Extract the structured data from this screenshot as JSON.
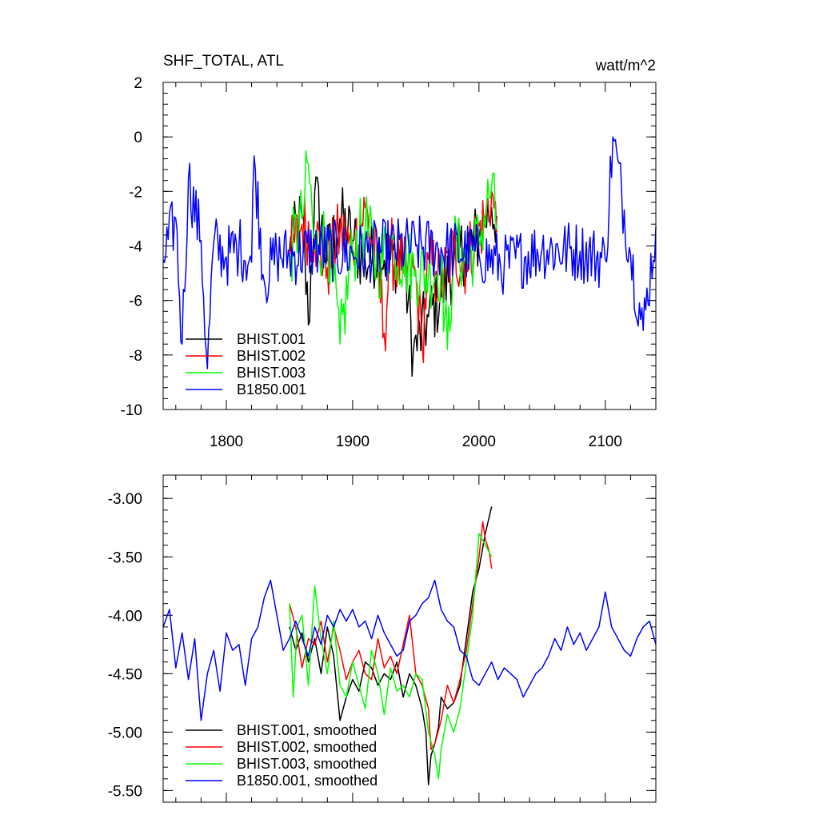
{
  "chart_data": [
    {
      "type": "line",
      "title": "SHF_TOTAL, ATL",
      "units": "watt/m^2",
      "xlim": [
        1750,
        2140
      ],
      "ylim": [
        -10,
        2
      ],
      "xticks": [
        1800,
        1900,
        2000,
        2100
      ],
      "yticks": [
        2,
        0,
        -2,
        -4,
        -6,
        -8,
        -10
      ],
      "ytick_labels": [
        "2",
        "0",
        "-2",
        "-4",
        "-6",
        "-8",
        "-10"
      ],
      "grid": false,
      "legend_position": "bottom-left",
      "series": [
        {
          "name": "BHIST.001",
          "color": "#000000",
          "x_start": 1850,
          "x_end": 2014,
          "noisy": true,
          "mean": -4.4,
          "amp": 1.3,
          "x": [
            1850,
            1860,
            1865,
            1870,
            1880,
            1890,
            1900,
            1910,
            1920,
            1930,
            1940,
            1948,
            1960,
            1970,
            1980,
            1990,
            2000,
            2005,
            2010,
            2014
          ],
          "y": [
            -4.2,
            -3.0,
            -6.9,
            -2.0,
            -4.5,
            -3.0,
            -3.8,
            -4.6,
            -4.1,
            -4.5,
            -4.3,
            -7.9,
            -6.6,
            -5.8,
            -4.6,
            -4.0,
            -3.7,
            -2.9,
            -2.6,
            -2.9
          ]
        },
        {
          "name": "BHIST.002",
          "color": "#ff0000",
          "x_start": 1850,
          "x_end": 2014,
          "noisy": true,
          "mean": -4.4,
          "amp": 1.3,
          "x": [
            1850,
            1860,
            1870,
            1880,
            1890,
            1900,
            1910,
            1920,
            1925,
            1930,
            1940,
            1950,
            1955,
            1960,
            1970,
            1980,
            1990,
            2000,
            2005,
            2010,
            2014
          ],
          "y": [
            -4.4,
            -3.2,
            -3.6,
            -4.8,
            -3.5,
            -4.2,
            -2.6,
            -4.9,
            -7.2,
            -4.2,
            -5.0,
            -5.1,
            -7.6,
            -4.5,
            -5.4,
            -4.2,
            -4.6,
            -3.3,
            -3.1,
            -2.0,
            -3.5
          ]
        },
        {
          "name": "BHIST.003",
          "color": "#00ff00",
          "x_start": 1850,
          "x_end": 2014,
          "noisy": true,
          "mean": -4.4,
          "amp": 1.3,
          "x": [
            1850,
            1860,
            1865,
            1870,
            1880,
            1890,
            1900,
            1910,
            1920,
            1930,
            1940,
            1950,
            1960,
            1970,
            1975,
            1980,
            1990,
            2000,
            2010,
            2014
          ],
          "y": [
            -4.3,
            -3.0,
            -1.0,
            -4.2,
            -3.5,
            -7.6,
            -4.2,
            -3.2,
            -4.8,
            -3.8,
            -4.5,
            -4.9,
            -5.0,
            -4.8,
            -7.8,
            -4.0,
            -4.6,
            -3.8,
            -1.8,
            -3.4
          ]
        },
        {
          "name": "B1850.001",
          "color": "#0000ff",
          "x_start": 1750,
          "x_end": 2140,
          "noisy": true,
          "mean": -4.35,
          "amp": 1.1,
          "x": [
            1750,
            1760,
            1765,
            1770,
            1780,
            1785,
            1790,
            1800,
            1810,
            1820,
            1822,
            1830,
            1840,
            1850,
            1870,
            1900,
            1950,
            2000,
            2020,
            2050,
            2080,
            2100,
            2106,
            2120,
            2130,
            2140
          ],
          "y": [
            -4.5,
            -3.0,
            -7.6,
            -1.5,
            -3.8,
            -8.5,
            -3.9,
            -4.4,
            -4.0,
            -4.6,
            -0.7,
            -5.3,
            -4.3,
            -4.4,
            -4.1,
            -4.3,
            -4.0,
            -4.3,
            -4.7,
            -4.1,
            -4.2,
            -4.5,
            0.0,
            -4.3,
            -7.1,
            -3.3
          ]
        }
      ]
    },
    {
      "type": "line",
      "xlim": [
        1750,
        2140
      ],
      "ylim": [
        -5.6,
        -2.8
      ],
      "xticks": [
        1800,
        1900,
        2000,
        2100
      ],
      "yticks": [
        -3.0,
        -3.5,
        -4.0,
        -4.5,
        -5.0,
        -5.5
      ],
      "ytick_labels": [
        "-3.00",
        "-3.50",
        "-4.00",
        "-4.50",
        "-5.00",
        "-5.50"
      ],
      "grid": false,
      "legend_position": "bottom-left",
      "series": [
        {
          "name": "BHIST.001, smoothed",
          "color": "#000000",
          "x": [
            1850,
            1855,
            1860,
            1865,
            1870,
            1875,
            1880,
            1885,
            1890,
            1895,
            1900,
            1905,
            1910,
            1915,
            1920,
            1925,
            1930,
            1935,
            1940,
            1945,
            1950,
            1955,
            1958,
            1960,
            1962,
            1965,
            1968,
            1970,
            1975,
            1980,
            1985,
            1990,
            1995,
            2000,
            2005,
            2010
          ],
          "y": [
            -4.1,
            -4.3,
            -4.15,
            -4.4,
            -4.2,
            -4.5,
            -4.1,
            -4.35,
            -4.9,
            -4.7,
            -4.55,
            -4.65,
            -4.4,
            -4.45,
            -4.6,
            -4.5,
            -4.55,
            -4.4,
            -4.7,
            -4.5,
            -4.6,
            -4.8,
            -5.0,
            -5.45,
            -5.2,
            -5.1,
            -4.95,
            -4.7,
            -4.8,
            -4.75,
            -4.6,
            -4.2,
            -3.8,
            -3.6,
            -3.3,
            -3.07
          ]
        },
        {
          "name": "BHIST.002, smoothed",
          "color": "#ff0000",
          "x": [
            1850,
            1855,
            1860,
            1865,
            1870,
            1875,
            1880,
            1885,
            1890,
            1895,
            1900,
            1905,
            1910,
            1915,
            1920,
            1925,
            1930,
            1935,
            1940,
            1945,
            1950,
            1955,
            1960,
            1962,
            1965,
            1970,
            1975,
            1980,
            1985,
            1990,
            1995,
            2000,
            2003,
            2005,
            2008,
            2010
          ],
          "y": [
            -3.9,
            -4.1,
            -4.45,
            -4.2,
            -4.25,
            -4.05,
            -4.4,
            -4.1,
            -4.3,
            -4.55,
            -4.4,
            -4.3,
            -4.5,
            -4.55,
            -4.2,
            -4.45,
            -4.35,
            -4.5,
            -4.25,
            -4.0,
            -4.5,
            -4.6,
            -4.8,
            -5.15,
            -5.1,
            -4.9,
            -4.6,
            -4.75,
            -4.55,
            -4.3,
            -3.9,
            -3.5,
            -3.2,
            -3.35,
            -3.45,
            -3.6
          ]
        },
        {
          "name": "BHIST.003, smoothed",
          "color": "#00ff00",
          "x": [
            1850,
            1853,
            1856,
            1860,
            1865,
            1870,
            1875,
            1880,
            1885,
            1890,
            1895,
            1900,
            1905,
            1910,
            1915,
            1920,
            1925,
            1930,
            1935,
            1940,
            1945,
            1950,
            1955,
            1960,
            1965,
            1968,
            1970,
            1975,
            1980,
            1985,
            1990,
            1995,
            2000,
            2005,
            2010
          ],
          "y": [
            -3.9,
            -4.7,
            -4.1,
            -4.0,
            -4.6,
            -3.75,
            -4.2,
            -4.5,
            -4.05,
            -4.6,
            -4.7,
            -4.4,
            -4.6,
            -4.8,
            -4.3,
            -4.5,
            -4.85,
            -4.45,
            -4.65,
            -4.6,
            -4.7,
            -4.5,
            -4.55,
            -5.0,
            -5.2,
            -5.4,
            -5.15,
            -4.85,
            -5.0,
            -4.8,
            -4.4,
            -4.0,
            -3.3,
            -3.4,
            -3.5
          ]
        },
        {
          "name": "B1850.001, smoothed",
          "color": "#0000ff",
          "x": [
            1750,
            1755,
            1760,
            1765,
            1770,
            1775,
            1780,
            1785,
            1790,
            1795,
            1800,
            1805,
            1810,
            1815,
            1820,
            1825,
            1830,
            1835,
            1840,
            1845,
            1850,
            1855,
            1860,
            1865,
            1870,
            1875,
            1880,
            1885,
            1890,
            1895,
            1900,
            1905,
            1910,
            1915,
            1920,
            1925,
            1930,
            1935,
            1940,
            1945,
            1950,
            1955,
            1960,
            1965,
            1970,
            1975,
            1980,
            1985,
            1990,
            1995,
            2000,
            2005,
            2010,
            2015,
            2020,
            2025,
            2030,
            2035,
            2040,
            2045,
            2050,
            2055,
            2060,
            2065,
            2070,
            2075,
            2080,
            2085,
            2090,
            2095,
            2100,
            2105,
            2110,
            2115,
            2120,
            2125,
            2130,
            2135,
            2140
          ],
          "y": [
            -4.1,
            -3.95,
            -4.45,
            -4.15,
            -4.55,
            -4.2,
            -4.9,
            -4.5,
            -4.3,
            -4.65,
            -4.15,
            -4.3,
            -4.25,
            -4.6,
            -4.2,
            -4.1,
            -3.85,
            -3.7,
            -4.0,
            -4.3,
            -4.2,
            -4.05,
            -4.2,
            -4.35,
            -4.1,
            -4.25,
            -4.0,
            -4.1,
            -3.95,
            -4.05,
            -3.95,
            -4.1,
            -4.05,
            -4.2,
            -4.0,
            -4.15,
            -4.25,
            -4.35,
            -4.3,
            -4.05,
            -4.0,
            -3.9,
            -3.85,
            -3.7,
            -3.95,
            -4.05,
            -4.1,
            -4.3,
            -4.35,
            -4.55,
            -4.6,
            -4.5,
            -4.4,
            -4.55,
            -4.45,
            -4.5,
            -4.55,
            -4.7,
            -4.6,
            -4.5,
            -4.45,
            -4.35,
            -4.2,
            -4.3,
            -4.1,
            -4.25,
            -4.15,
            -4.3,
            -4.2,
            -4.1,
            -3.8,
            -4.1,
            -4.2,
            -4.3,
            -4.35,
            -4.2,
            -4.1,
            -4.05,
            -4.25
          ]
        }
      ]
    }
  ]
}
